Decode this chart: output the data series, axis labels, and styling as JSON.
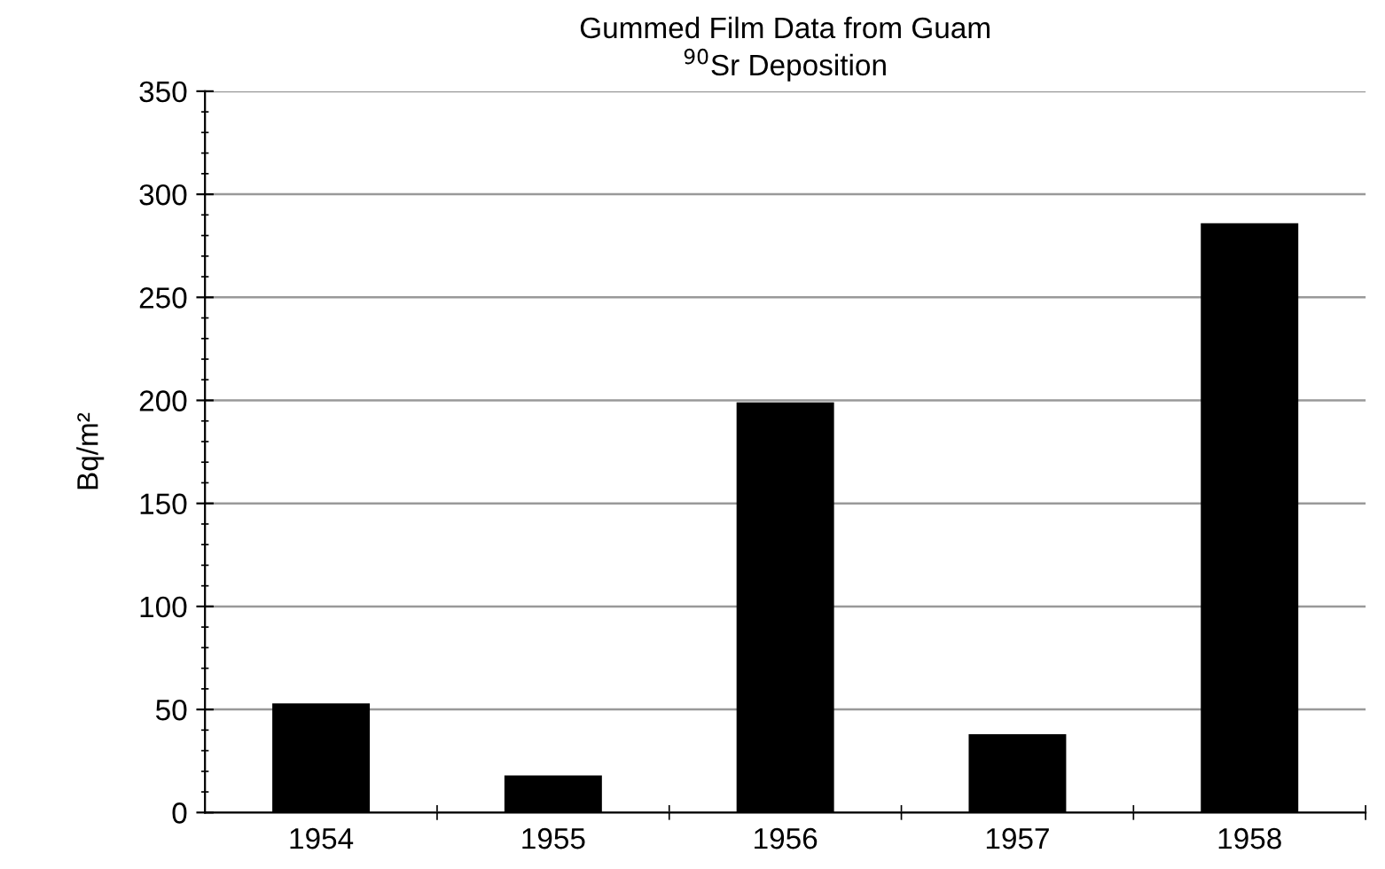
{
  "chart_data": {
    "type": "bar",
    "title": "Gummed Film Data from Guam",
    "subtitle": "$^{90}$Sr Deposition",
    "ylabel": "Bq/m²",
    "categories": [
      "1954",
      "1955",
      "1956",
      "1957",
      "1958"
    ],
    "values": [
      53,
      18,
      199,
      38,
      286
    ],
    "color": "#000000",
    "ylim": [
      0,
      350
    ],
    "yticks": [
      0,
      50,
      100,
      150,
      200,
      250,
      300,
      350
    ],
    "grid": "y"
  }
}
